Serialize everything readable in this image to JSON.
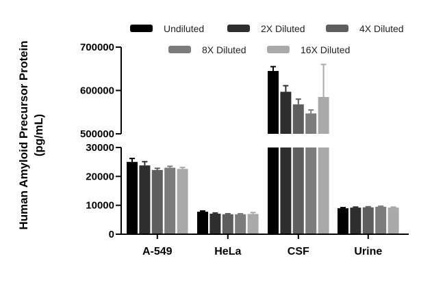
{
  "chart_data": {
    "type": "bar",
    "ylabel": [
      "Human Amyloid Precursor Protein",
      "(pg/mL)"
    ],
    "categories": [
      "A-549",
      "HeLa",
      "CSF",
      "Urine"
    ],
    "series": [
      {
        "name": "Undiluted",
        "color": "#000000",
        "values": [
          25000,
          7800,
          645000,
          9000
        ],
        "errors": [
          1200,
          250,
          10000,
          200
        ]
      },
      {
        "name": "2X Diluted",
        "color": "#2e2e2e",
        "values": [
          23800,
          7100,
          597000,
          9200
        ],
        "errors": [
          1300,
          250,
          14000,
          200
        ]
      },
      {
        "name": "4X Diluted",
        "color": "#5e5e5e",
        "values": [
          22200,
          6900,
          568000,
          9300
        ],
        "errors": [
          600,
          200,
          12000,
          200
        ]
      },
      {
        "name": "8X Diluted",
        "color": "#7c7c7c",
        "values": [
          23000,
          6900,
          547000,
          9500
        ],
        "errors": [
          500,
          200,
          8000,
          200
        ]
      },
      {
        "name": "16X Diluted",
        "color": "#a9a9a9",
        "values": [
          22600,
          7000,
          585000,
          9200
        ],
        "errors": [
          500,
          500,
          75000,
          200
        ]
      }
    ],
    "y_axis_lower": {
      "range": [
        0,
        30000
      ],
      "ticks": [
        0,
        10000,
        20000,
        30000
      ],
      "tick_labels": [
        "0",
        "10000",
        "20000",
        "30000"
      ]
    },
    "y_axis_upper": {
      "range": [
        500000,
        700000
      ],
      "ticks": [
        500000,
        600000,
        700000
      ],
      "tick_labels": [
        "500000",
        "600000",
        "700000"
      ]
    },
    "legend_placement": "top",
    "grid": false
  }
}
